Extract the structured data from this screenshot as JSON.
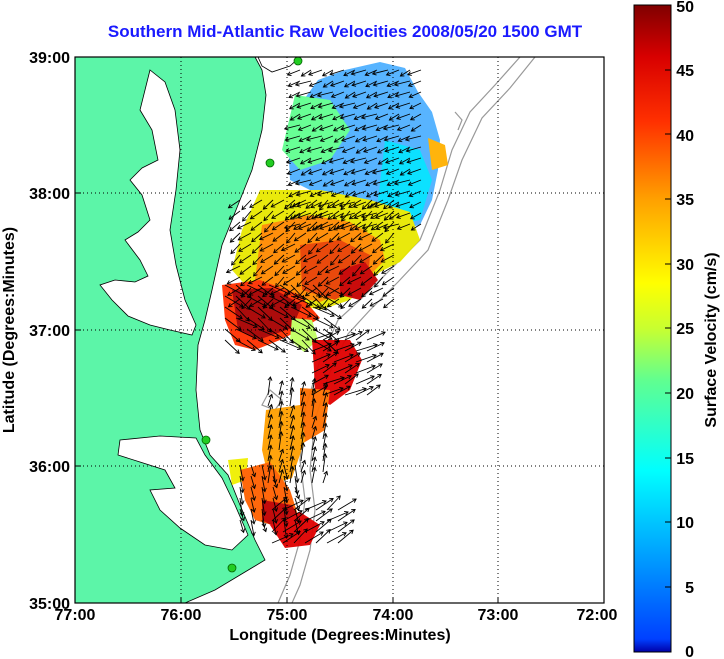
{
  "title": "Southern Mid-Atlantic Raw Velocities 2008/05/20 1500 GMT",
  "x_axis": {
    "label": "Longitude (Degrees:Minutes)",
    "ticks": [
      "77:00",
      "76:00",
      "75:00",
      "74:00",
      "73:00",
      "72:00"
    ],
    "lim": [
      -77,
      -72
    ]
  },
  "y_axis": {
    "label": "Latitude (Degrees:Minutes)",
    "ticks": [
      "39:00",
      "38:00",
      "37:00",
      "36:00",
      "35:00"
    ],
    "lim": [
      35,
      39
    ]
  },
  "colorbar": {
    "label": "Surface Velocity (cm/s)",
    "ticks": [
      "50",
      "45",
      "40",
      "35",
      "30",
      "25",
      "20",
      "15",
      "10",
      "5",
      "0"
    ],
    "range": [
      0,
      50
    ],
    "colormap": "jet"
  },
  "colors": {
    "land": "#5cf5a8",
    "title": "#1a1aff",
    "grid": "#000000",
    "bathymetry": "#999999",
    "station": "#22cc22"
  },
  "map": {
    "grid": true,
    "grid_style": "dotted",
    "legend": "none",
    "region": "Southern Mid-Atlantic Bight (Delmarva Peninsula, Chesapeake Bay, Outer Banks)"
  },
  "chart_data": {
    "type": "heatmap",
    "variable": "surface current speed",
    "units": "cm/s",
    "approx_regions": [
      {
        "area": "north (38.1–38.9N, 74.9–73.9W)",
        "speed_range": [
          8,
          18
        ]
      },
      {
        "area": "central shelf (37.4–38.1N, 75.4–74.1W)",
        "speed_range": [
          25,
          35
        ]
      },
      {
        "area": "mouth of Chesapeake (37.0–37.3N)",
        "speed_range": [
          40,
          50
        ]
      },
      {
        "area": "Cape Hatteras region (35.5–35.8N)",
        "speed_range": [
          35,
          50
        ]
      }
    ]
  }
}
